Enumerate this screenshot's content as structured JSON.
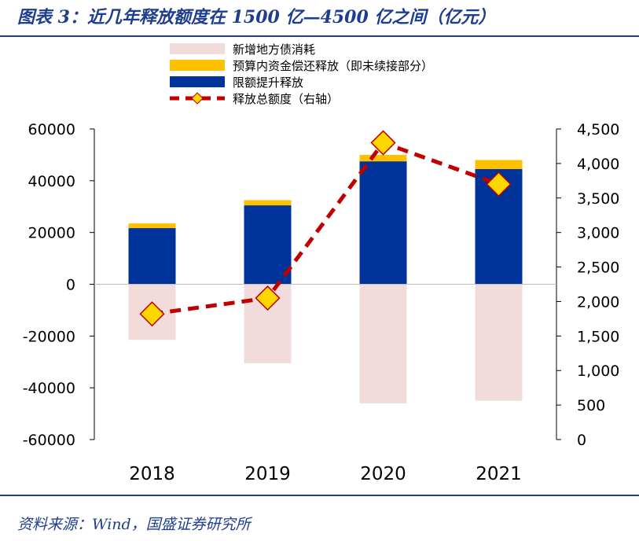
{
  "header": {
    "title": "图表 3：近几年释放额度在 1500 亿—4500 亿之间（亿元）"
  },
  "footer": {
    "source": "资料来源：Wind，国盛证券研究所"
  },
  "colors": {
    "consumed": "#f2dcdb",
    "budget": "#ffc000",
    "limit": "#003399",
    "total": "#c00000",
    "marker": "#ffd700",
    "title": "#1f3d8f"
  },
  "chart_data": {
    "type": "bar",
    "categories": [
      "2018",
      "2019",
      "2020",
      "2021"
    ],
    "series": [
      {
        "name": "新增地方债消耗",
        "type": "bar",
        "axis": "left",
        "values": [
          -21500,
          -30500,
          -46000,
          -45000
        ]
      },
      {
        "name": "预算内资金偿还释放（即未续接部分）",
        "type": "bar",
        "axis": "left",
        "values": [
          1800,
          2000,
          2500,
          3500
        ]
      },
      {
        "name": "限额提升释放",
        "type": "bar",
        "axis": "left",
        "values": [
          21700,
          30500,
          47500,
          44500
        ]
      },
      {
        "name": "释放总额度（右轴）",
        "type": "line",
        "axis": "right",
        "values": [
          1820,
          2050,
          4300,
          3700
        ]
      }
    ],
    "y_left": {
      "range": [
        -60000,
        60000
      ],
      "ticks": [
        "60000",
        "40000",
        "20000",
        "0",
        "-20000",
        "-40000",
        "-60000"
      ]
    },
    "y_right": {
      "range": [
        0,
        4500
      ],
      "ticks": [
        "4,500",
        "4,000",
        "3,500",
        "3,000",
        "2,500",
        "2,000",
        "1,500",
        "1,000",
        "500",
        "0"
      ]
    },
    "legend_position": "top-center",
    "grid": false
  }
}
